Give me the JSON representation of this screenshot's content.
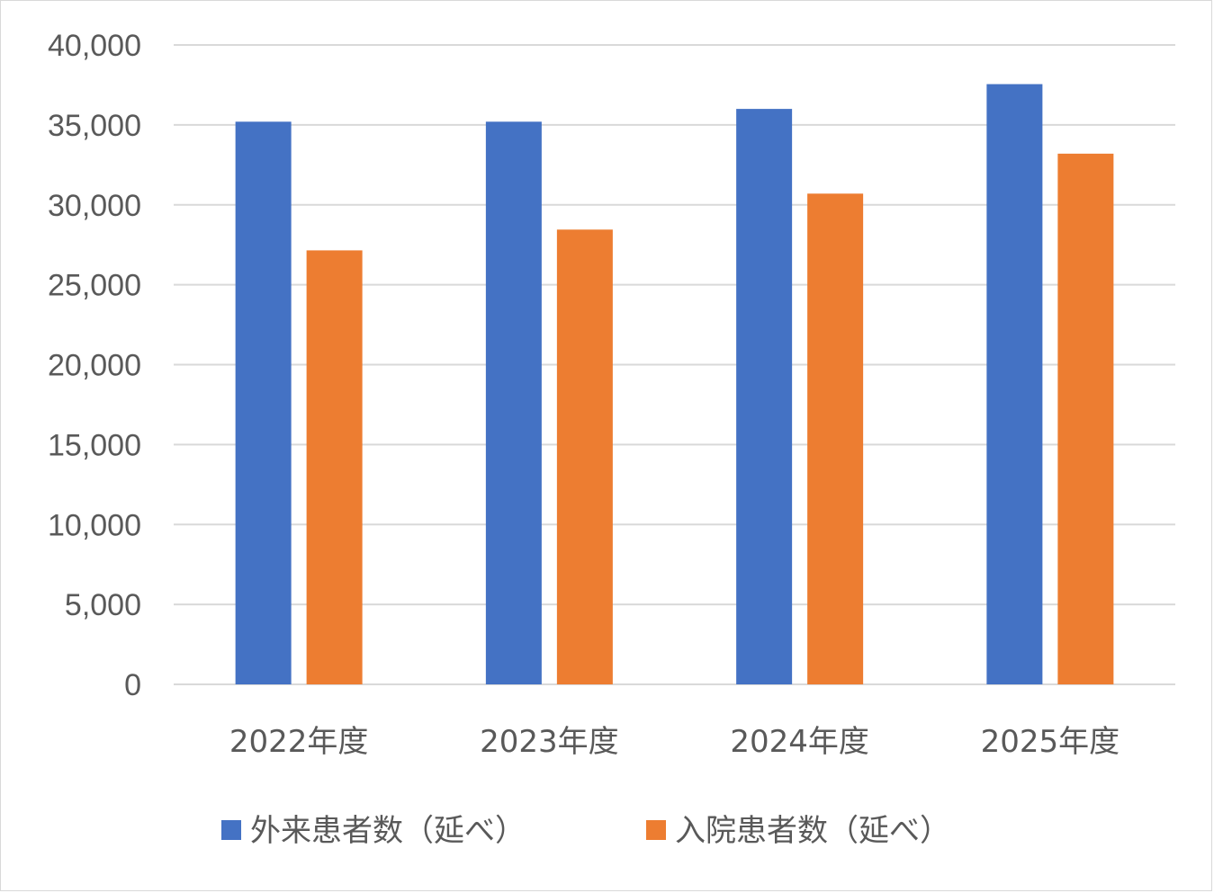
{
  "chart_data": {
    "type": "bar",
    "categories": [
      "2022年度",
      "2023年度",
      "2024年度",
      "2025年度"
    ],
    "series": [
      {
        "name": "外来患者数（延べ）",
        "color": "#4472C4",
        "values": [
          35200,
          35200,
          36000,
          37550
        ]
      },
      {
        "name": "入院患者数（延べ）",
        "color": "#ED7D31",
        "values": [
          27150,
          28450,
          30700,
          33200
        ]
      }
    ],
    "ylim": [
      0,
      40000
    ],
    "yticks": [
      "0",
      "5,000",
      "10,000",
      "15,000",
      "20,000",
      "25,000",
      "30,000",
      "35,000",
      "40,000"
    ],
    "ytick_values": [
      0,
      5000,
      10000,
      15000,
      20000,
      25000,
      30000,
      35000,
      40000
    ],
    "grid": true,
    "gridline_color": "#d9d9d9",
    "legend_position": "bottom"
  }
}
